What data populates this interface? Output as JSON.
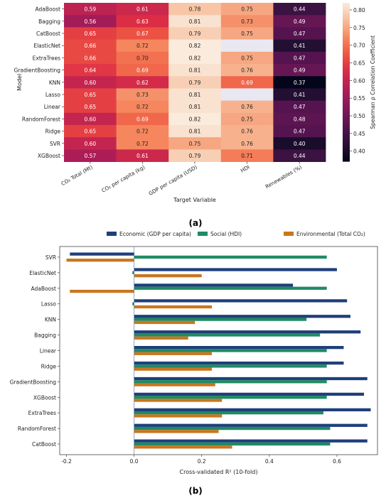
{
  "figure": {
    "panel_a_label": "(a)",
    "panel_b_label": "(b)"
  },
  "chart_data": [
    {
      "type": "heatmap",
      "ylabel": "Model",
      "xlabel": "Target Variable",
      "colorbar_label": "Spearman ρ Correlation Coefficient",
      "colorbar_ticks": [
        0.4,
        0.45,
        0.5,
        0.55,
        0.6,
        0.65,
        0.7,
        0.75,
        0.8
      ],
      "colorbar_range": [
        0.37,
        0.82
      ],
      "columns": [
        "CO₂ Total (Mt)",
        "CO₂ per capita (kg)",
        "GDP per capita (USD)",
        "HDI",
        "Renewables (%)"
      ],
      "rows": [
        "AdaBoost",
        "Bagging",
        "CatBoost",
        "ElasticNet",
        "ExtraTrees",
        "GradientBoosting",
        "KNN",
        "Lasso",
        "Linear",
        "RandomForest",
        "Ridge",
        "SVR",
        "XGBoost"
      ],
      "values": [
        [
          0.59,
          0.61,
          0.78,
          0.75,
          0.44
        ],
        [
          0.56,
          0.63,
          0.81,
          0.73,
          0.49
        ],
        [
          0.65,
          0.67,
          0.79,
          0.75,
          0.47
        ],
        [
          0.66,
          0.72,
          0.82,
          null,
          0.41
        ],
        [
          0.66,
          0.7,
          0.82,
          0.75,
          0.47
        ],
        [
          0.64,
          0.69,
          0.81,
          0.76,
          0.49
        ],
        [
          0.6,
          0.62,
          0.79,
          0.69,
          0.37
        ],
        [
          0.65,
          0.73,
          0.81,
          null,
          0.41
        ],
        [
          0.65,
          0.72,
          0.81,
          0.76,
          0.47
        ],
        [
          0.6,
          0.69,
          0.82,
          0.75,
          0.48
        ],
        [
          0.65,
          0.72,
          0.81,
          0.76,
          0.47
        ],
        [
          0.6,
          0.72,
          0.75,
          0.76,
          0.4
        ],
        [
          0.57,
          0.61,
          0.79,
          0.71,
          0.44
        ]
      ]
    },
    {
      "type": "bar",
      "orientation": "horizontal",
      "xlabel": "Cross-validated R² (10-fold)",
      "xlim": [
        -0.22,
        0.72
      ],
      "xticks": [
        -0.2,
        0.0,
        0.2,
        0.4,
        0.6
      ],
      "legend_position": "top",
      "categories": [
        "SVR",
        "ElasticNet",
        "AdaBoost",
        "Lasso",
        "KNN",
        "Bagging",
        "Linear",
        "Ridge",
        "GradientBoosting",
        "XGBoost",
        "ExtraTrees",
        "RandomForest",
        "CatBoost"
      ],
      "series": [
        {
          "name": "Economic (GDP per capita)",
          "color": "#1f3f7a",
          "values": [
            -0.19,
            0.6,
            0.47,
            0.63,
            0.64,
            0.67,
            0.62,
            0.62,
            0.69,
            0.68,
            0.7,
            0.69,
            0.69
          ]
        },
        {
          "name": "Social (HDI)",
          "color": "#1f8a63",
          "values": [
            0.57,
            -0.005,
            0.57,
            -0.005,
            0.51,
            0.55,
            0.57,
            0.57,
            0.57,
            0.57,
            0.56,
            0.58,
            0.58
          ]
        },
        {
          "name": "Environmental (Total CO₂)",
          "color": "#c9761e",
          "values": [
            -0.2,
            0.2,
            -0.19,
            0.23,
            0.18,
            0.16,
            0.23,
            0.23,
            0.24,
            0.26,
            0.26,
            0.25,
            0.29
          ]
        }
      ]
    }
  ]
}
